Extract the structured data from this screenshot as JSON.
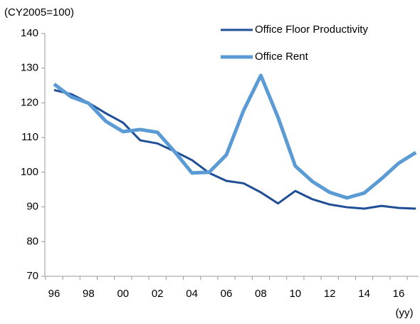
{
  "chart_data": {
    "type": "line",
    "y_label": "(CY2005=100)",
    "x_label": "(yy)",
    "categories": [
      "96",
      null,
      "98",
      null,
      "00",
      null,
      "02",
      null,
      "04",
      null,
      "06",
      null,
      "08",
      null,
      "10",
      null,
      "12",
      null,
      "14",
      null,
      "16",
      null
    ],
    "series": [
      {
        "name": "Office Floor Productivity",
        "color": "#1f4e96",
        "values": [
          123.7,
          122.5,
          120,
          117,
          114.3,
          109.2,
          108.3,
          106,
          103.5,
          99.8,
          97.5,
          96.8,
          94.2,
          91,
          94.6,
          92.2,
          90.7,
          89.9,
          89.5,
          90.3,
          89.7,
          89.5
        ]
      },
      {
        "name": "Office Rent",
        "color": "#5b9bd5",
        "values": [
          125.4,
          121.7,
          119.9,
          114.7,
          111.7,
          112.3,
          111.5,
          105.9,
          99.8,
          100,
          105,
          117.8,
          127.9,
          115.8,
          101.8,
          97.3,
          94.2,
          92.6,
          94,
          98.1,
          102.6,
          105.7
        ]
      }
    ],
    "ylim": [
      70,
      140
    ],
    "yticks": [
      70,
      80,
      90,
      100,
      110,
      120,
      130,
      140
    ],
    "grid": false,
    "legend": "upper right"
  }
}
